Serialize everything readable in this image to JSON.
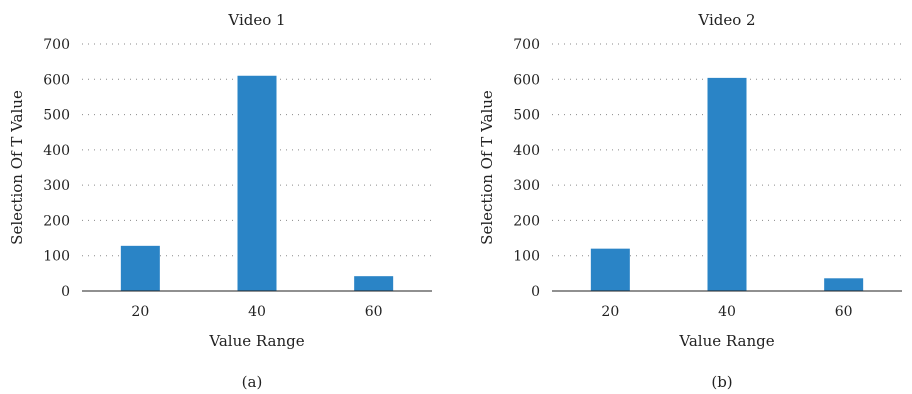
{
  "chart_data": [
    {
      "type": "bar",
      "title": "Video 1",
      "xlabel": "Value Range",
      "ylabel": "Selection Of T Value",
      "categories": [
        "20",
        "40",
        "60"
      ],
      "values": [
        128,
        610,
        42
      ],
      "ylim": [
        0,
        700
      ],
      "yticks": [
        0,
        100,
        200,
        300,
        400,
        500,
        600,
        700
      ],
      "grid": "horizontal dotted",
      "bar_color": "#2a84c6",
      "caption": "(a)"
    },
    {
      "type": "bar",
      "title": "Video 2",
      "xlabel": "Value Range",
      "ylabel": "Selection Of T Value",
      "categories": [
        "20",
        "40",
        "60"
      ],
      "values": [
        120,
        604,
        36
      ],
      "ylim": [
        0,
        700
      ],
      "yticks": [
        0,
        100,
        200,
        300,
        400,
        500,
        600,
        700
      ],
      "grid": "horizontal dotted",
      "bar_color": "#2a84c6",
      "caption": "(b)"
    }
  ]
}
